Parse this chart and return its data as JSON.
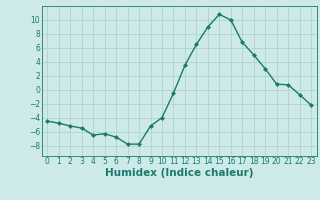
{
  "x": [
    0,
    1,
    2,
    3,
    4,
    5,
    6,
    7,
    8,
    9,
    10,
    11,
    12,
    13,
    14,
    15,
    16,
    17,
    18,
    19,
    20,
    21,
    22,
    23
  ],
  "y": [
    -4.5,
    -4.8,
    -5.2,
    -5.5,
    -6.5,
    -6.3,
    -6.8,
    -7.8,
    -7.8,
    -5.2,
    -4.0,
    -0.5,
    3.5,
    6.5,
    9.0,
    10.8,
    10.0,
    6.8,
    5.0,
    3.0,
    0.8,
    0.7,
    -0.7,
    -2.2
  ],
  "line_color": "#1a7a6e",
  "marker": "D",
  "marker_size": 2.0,
  "linewidth": 1.0,
  "bg_color": "#ceeae8",
  "grid_color": "#aacfcc",
  "xlabel": "Humidex (Indice chaleur)",
  "ylabel": "",
  "ylim": [
    -9.5,
    12.0
  ],
  "xlim": [
    -0.5,
    23.5
  ],
  "yticks": [
    -8,
    -6,
    -4,
    -2,
    0,
    2,
    4,
    6,
    8,
    10
  ],
  "xticks": [
    0,
    1,
    2,
    3,
    4,
    5,
    6,
    7,
    8,
    9,
    10,
    11,
    12,
    13,
    14,
    15,
    16,
    17,
    18,
    19,
    20,
    21,
    22,
    23
  ],
  "tick_labelsize": 5.5,
  "xlabel_fontsize": 7.5,
  "axis_color": "#1a7a6e"
}
